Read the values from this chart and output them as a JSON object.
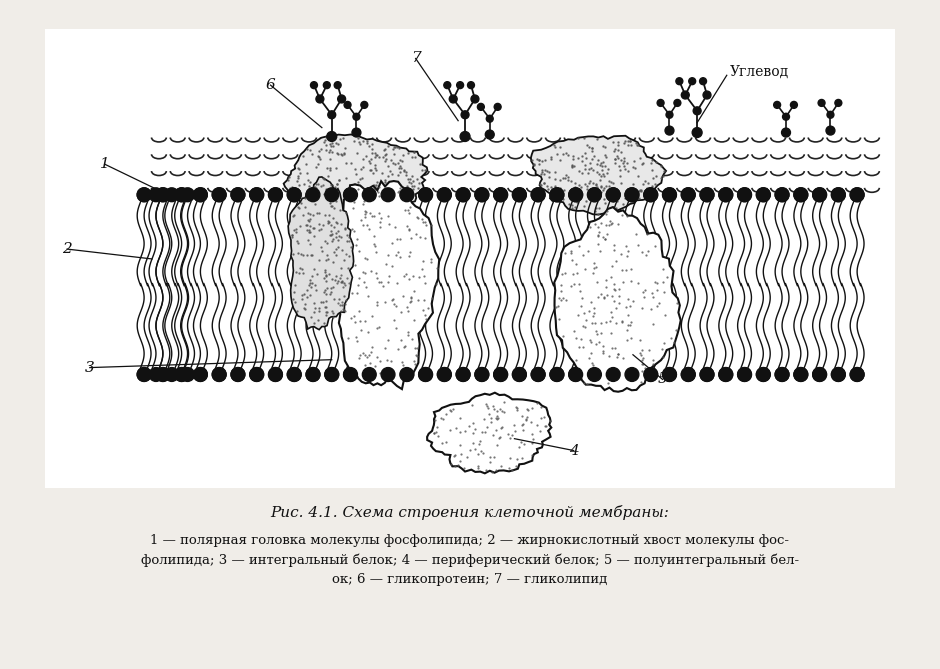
{
  "title": "Рис. 4.1. Схема строения клеточной мембраны:",
  "caption_line1": "1 — полярная головка молекулы фосфолипида; 2 — жирнокислотный хвост молекулы фос-",
  "caption_line2": "фолипида; 3 — интегральный белок; 4 — периферический белок; 5 — полуинтегральный бел-",
  "caption_line3": "ок; 6 — гликопротеин; 7 — гликолипид",
  "uglevod": "Углевод",
  "bg": "#f0ede8",
  "figsize": [
    9.4,
    6.69
  ],
  "dpi": 100
}
